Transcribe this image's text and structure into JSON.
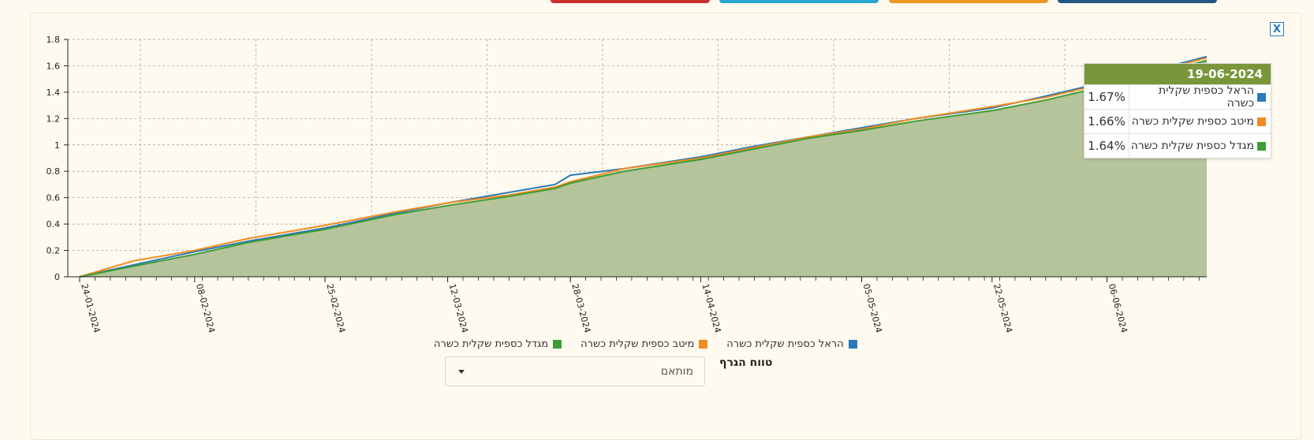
{
  "top_buttons": [
    {
      "color": "#c8302c"
    },
    {
      "color": "#2aa7d0"
    },
    {
      "color": "#ec9726"
    },
    {
      "color": "#245684"
    }
  ],
  "close_label": "X",
  "tooltip": {
    "date": "19-06-2024",
    "rows": [
      {
        "name": "הראל כספית שקלית כשרה",
        "value": "1.67%",
        "color": "#2a7ab9"
      },
      {
        "name": "מיטב כספית שקלית כשרה",
        "value": "1.66%",
        "color": "#f28a1f"
      },
      {
        "name": "מגדל כספית שקלית כשרה",
        "value": "1.64%",
        "color": "#3d9b35"
      }
    ]
  },
  "legend": [
    {
      "name": "הראל כספית שקלית כשרה",
      "color": "#2a7ab9"
    },
    {
      "name": "מיטב כספית שקלית כשרה",
      "color": "#f28a1f"
    },
    {
      "name": "מגדל כספית שקלית כשרה",
      "color": "#3d9b35"
    }
  ],
  "range": {
    "label": "טווח הגרף",
    "selected": "מותאם"
  },
  "chart_data": {
    "type": "line",
    "area_fill_color": "#b5c49a",
    "grid": true,
    "ylim": [
      0,
      1.8
    ],
    "y_ticks": [
      0,
      0.2,
      0.4,
      0.6,
      0.8,
      1,
      1.2,
      1.4,
      1.6,
      1.8
    ],
    "y_tick_labels": [
      "0",
      "0.2",
      "0.4",
      "0.6",
      "0.8",
      "1",
      "1.2",
      "1.4",
      "1.6",
      "1.8"
    ],
    "xlim": [
      "2024-01-24",
      "2024-06-19"
    ],
    "x_tick_labels": [
      "24-01-2024",
      "08-02-2024",
      "25-02-2024",
      "12-03-2024",
      "28-03-2024",
      "14-04-2024",
      "05-05-2024",
      "22-05-2024",
      "06-06-2024"
    ],
    "x_tick_dates": [
      "2024-01-24",
      "2024-02-08",
      "2024-02-25",
      "2024-03-12",
      "2024-03-28",
      "2024-04-14",
      "2024-05-05",
      "2024-05-22",
      "2024-06-06"
    ],
    "x": [
      "2024-01-24",
      "2024-01-31",
      "2024-02-08",
      "2024-02-15",
      "2024-02-25",
      "2024-03-05",
      "2024-03-12",
      "2024-03-20",
      "2024-03-26",
      "2024-03-28",
      "2024-04-04",
      "2024-04-14",
      "2024-04-21",
      "2024-04-28",
      "2024-05-05",
      "2024-05-12",
      "2024-05-22",
      "2024-05-29",
      "2024-06-06",
      "2024-06-13",
      "2024-06-19"
    ],
    "series": [
      {
        "name": "הראל כספית שקלית כשרה",
        "color": "#2a7ab9",
        "values": [
          0,
          0.09,
          0.19,
          0.27,
          0.37,
          0.48,
          0.56,
          0.64,
          0.7,
          0.77,
          0.82,
          0.91,
          0.99,
          1.06,
          1.13,
          1.2,
          1.28,
          1.37,
          1.48,
          1.58,
          1.67
        ]
      },
      {
        "name": "מיטב כספית שקלית כשרה",
        "color": "#f28a1f",
        "values": [
          0,
          0.12,
          0.2,
          0.29,
          0.39,
          0.49,
          0.56,
          0.62,
          0.68,
          0.72,
          0.82,
          0.9,
          0.98,
          1.06,
          1.12,
          1.2,
          1.29,
          1.36,
          1.47,
          1.57,
          1.66
        ]
      },
      {
        "name": "מגדל כספית שקלית כשרה",
        "color": "#3d9b35",
        "values": [
          0,
          0.08,
          0.17,
          0.26,
          0.36,
          0.47,
          0.54,
          0.61,
          0.67,
          0.71,
          0.8,
          0.89,
          0.97,
          1.05,
          1.11,
          1.18,
          1.26,
          1.34,
          1.45,
          1.55,
          1.64
        ]
      }
    ]
  }
}
